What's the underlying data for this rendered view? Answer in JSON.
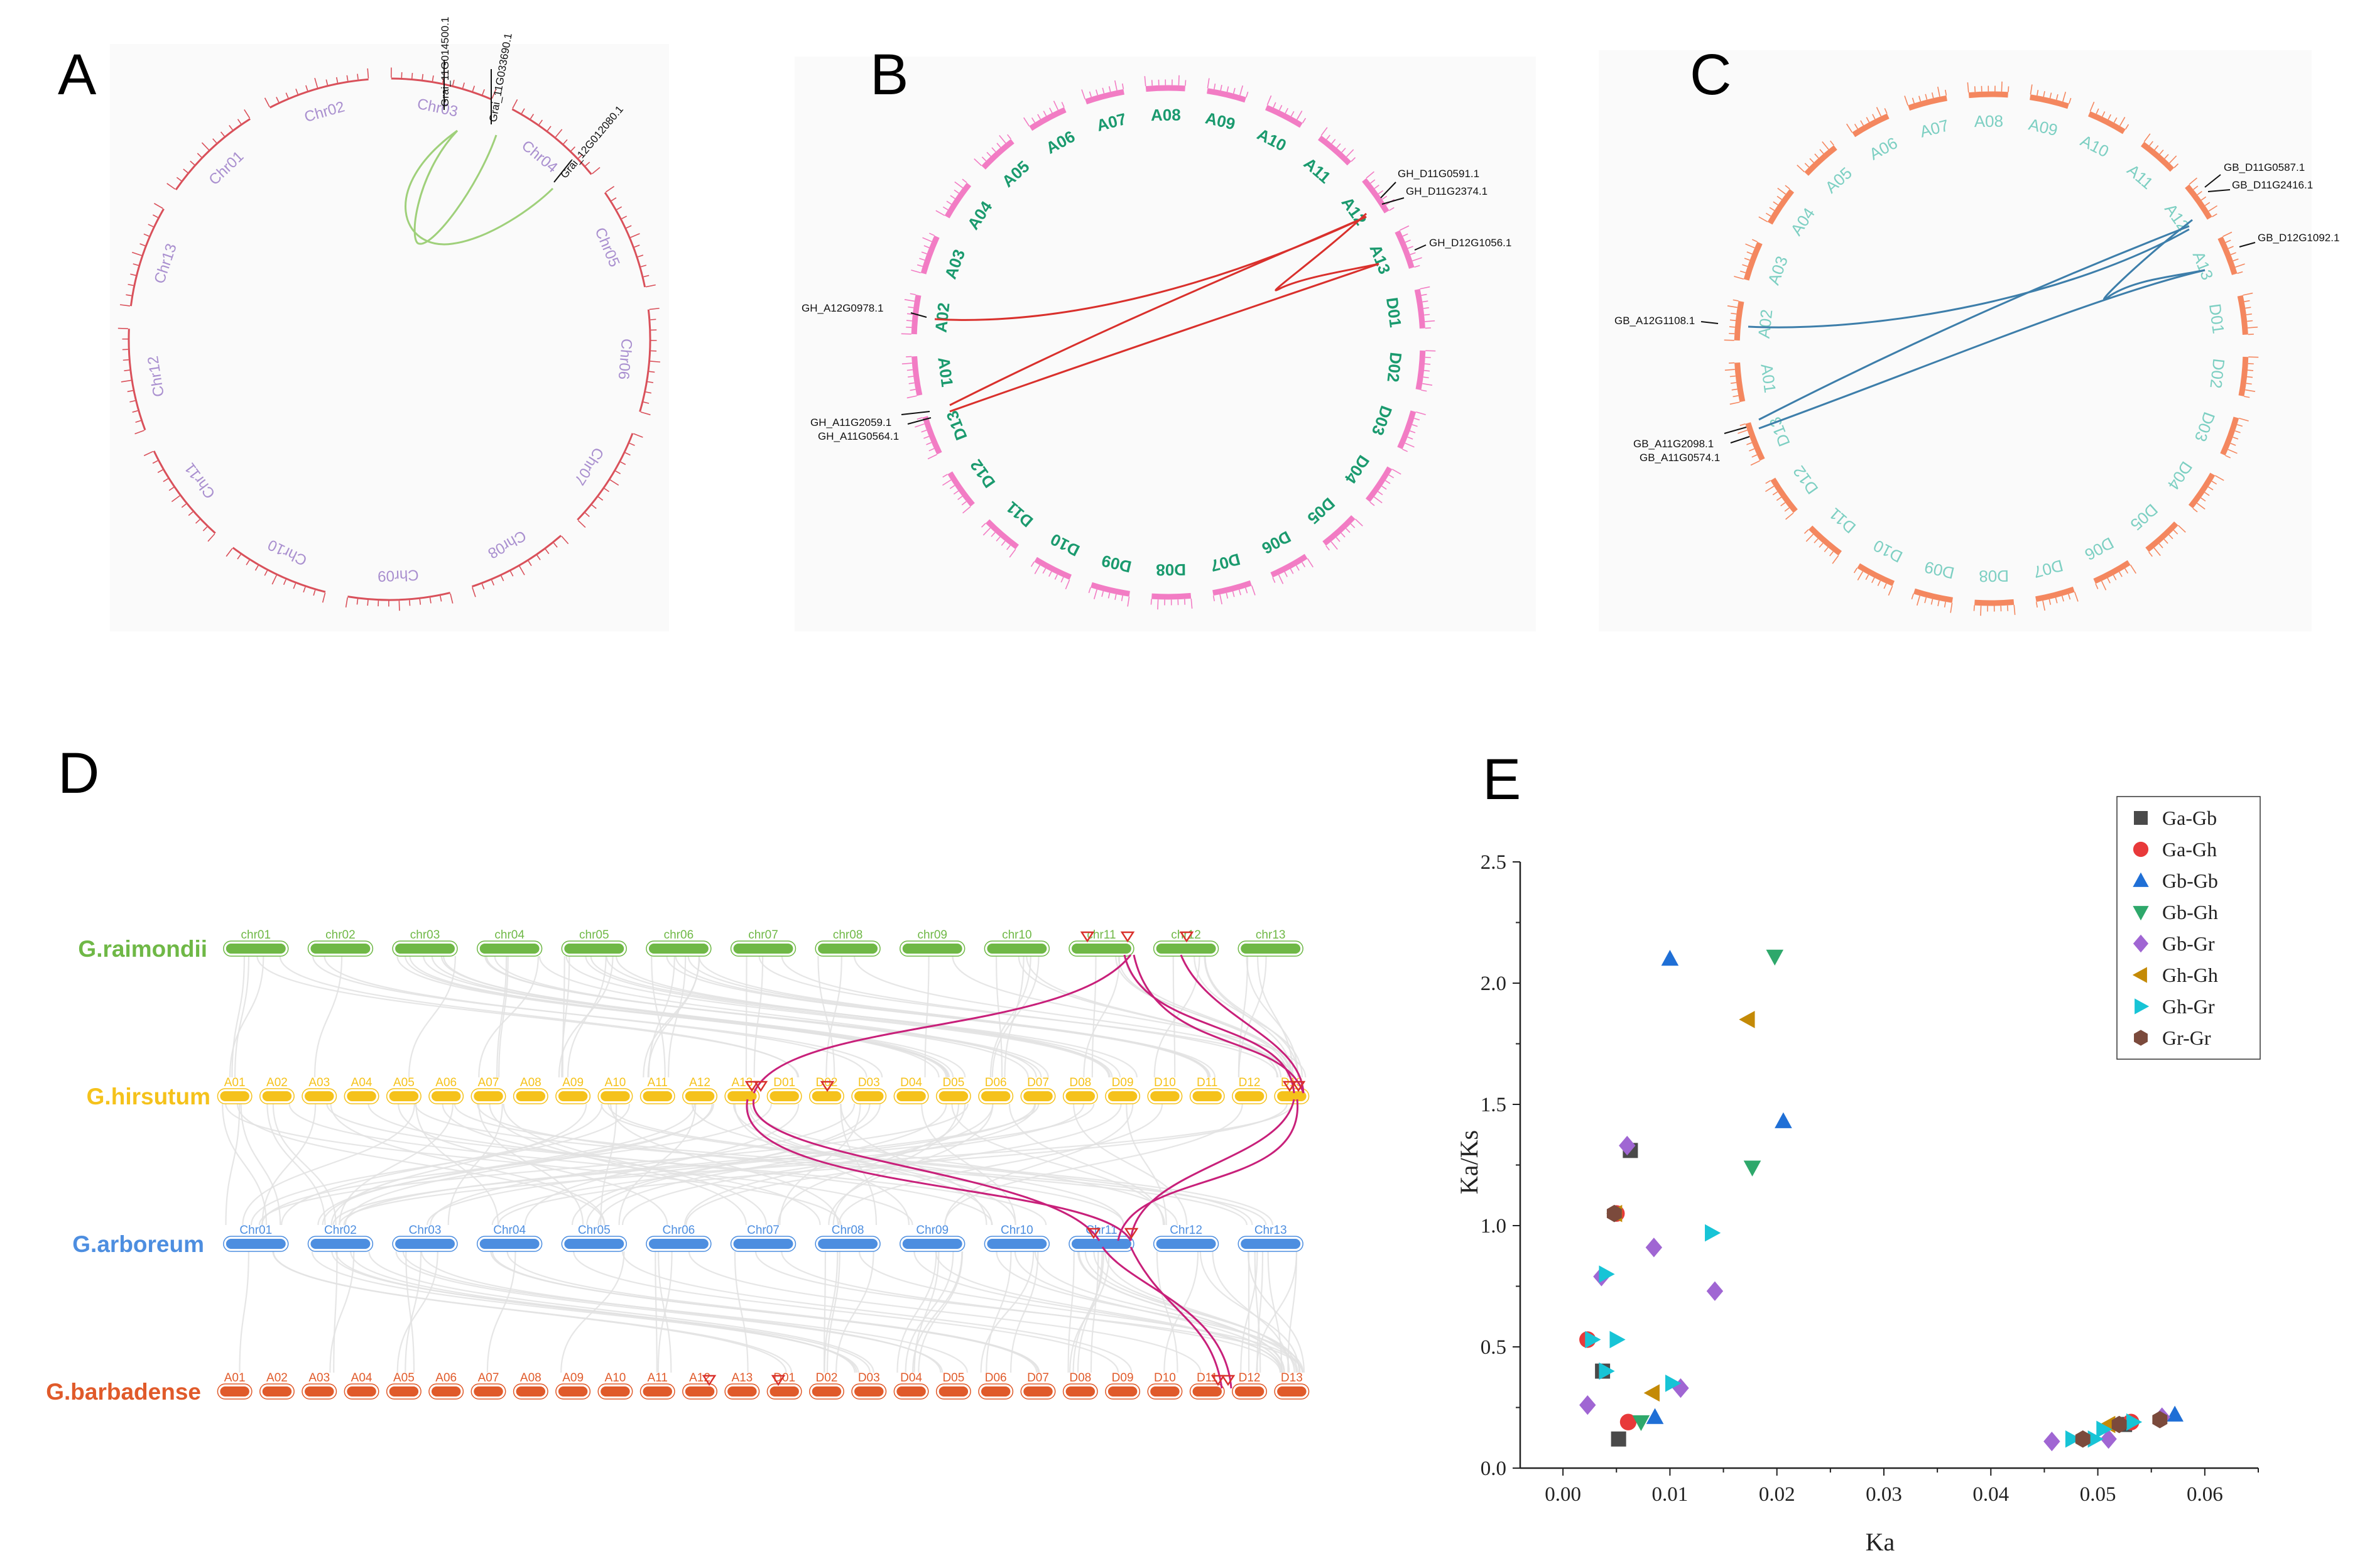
{
  "panels": {
    "a": "A",
    "b": "B",
    "c": "C",
    "d": "D",
    "e": "E"
  },
  "circos": [
    {
      "label": "A",
      "chromosomes": [
        "Chr01",
        "Chr02",
        "Chr03",
        "Chr04",
        "Chr05",
        "Chr06",
        "Chr07",
        "Chr08",
        "Chr09",
        "Chr10",
        "Chr11",
        "Chr12",
        "Chr13"
      ],
      "genes": [
        "Grai_11G014500.1",
        "Grai_11G033690.1",
        "Grai_12G012080.1"
      ],
      "color": "#d9505a",
      "label_color": "#a98fcf",
      "link_color": "#9fd07a"
    },
    {
      "label": "B",
      "chromosomes": [
        "A01",
        "A02",
        "A03",
        "A04",
        "A05",
        "A06",
        "A07",
        "A08",
        "A09",
        "A10",
        "A11",
        "A12",
        "A13",
        "D01",
        "D02",
        "D03",
        "D04",
        "D05",
        "D06",
        "D07",
        "D08",
        "D09",
        "D10",
        "D11",
        "D12",
        "D13"
      ],
      "genes": [
        "GH_D11G0591.1",
        "GH_D11G2374.1",
        "GH_D12G1056.1",
        "GH_A12G0978.1",
        "GH_A11G2059.1",
        "GH_A11G0564.1"
      ],
      "color": "#f27cc4",
      "label_color": "#1a9a6e",
      "link_color": "#d9302c"
    },
    {
      "label": "C",
      "chromosomes": [
        "A01",
        "A02",
        "A03",
        "A04",
        "A05",
        "A06",
        "A07",
        "A08",
        "A09",
        "A10",
        "A11",
        "A12",
        "A13",
        "D01",
        "D02",
        "D03",
        "D04",
        "D05",
        "D06",
        "D07",
        "D08",
        "D09",
        "D10",
        "D11",
        "D12",
        "D13"
      ],
      "genes": [
        "GB_D11G0587.1",
        "GB_D11G2416.1",
        "GB_D12G1092.1",
        "GB_A12G1108.1",
        "GB_A11G2098.1",
        "GB_A11G0574.1"
      ],
      "color": "#f4875f",
      "label_color": "#7ccfc2",
      "link_color": "#3d7eaa"
    }
  ],
  "synteny": {
    "rows": [
      {
        "species": "G.raimondii",
        "color": "#6fb846",
        "chroms": [
          "chr01",
          "chr02",
          "chr03",
          "chr04",
          "chr05",
          "chr06",
          "chr07",
          "chr08",
          "chr09",
          "chr10",
          "chr11",
          "chr12",
          "chr13"
        ]
      },
      {
        "species": "G.hirsutum",
        "color": "#f5c21b",
        "chroms": [
          "A01",
          "A02",
          "A03",
          "A04",
          "A05",
          "A06",
          "A07",
          "A08",
          "A09",
          "A10",
          "A11",
          "A12",
          "A13",
          "D01",
          "D02",
          "D03",
          "D04",
          "D05",
          "D06",
          "D07",
          "D08",
          "D09",
          "D10",
          "D11",
          "D12",
          "D13"
        ]
      },
      {
        "species": "G.arboreum",
        "color": "#4d8ee0",
        "chroms": [
          "Chr01",
          "Chr02",
          "Chr03",
          "Chr04",
          "Chr05",
          "Chr06",
          "Chr07",
          "Chr08",
          "Chr09",
          "Chr10",
          "Chr11",
          "Chr12",
          "Chr13"
        ]
      },
      {
        "species": "G.barbadense",
        "color": "#e05a2a",
        "chroms": [
          "A01",
          "A02",
          "A03",
          "A04",
          "A05",
          "A06",
          "A07",
          "A08",
          "A09",
          "A10",
          "A11",
          "A12",
          "A13",
          "D01",
          "D02",
          "D03",
          "D04",
          "D05",
          "D06",
          "D07",
          "D08",
          "D09",
          "D10",
          "D11",
          "D12",
          "D13"
        ]
      }
    ]
  },
  "chart_data": {
    "type": "scatter",
    "title": "",
    "xlabel": "Ka",
    "ylabel": "Ka/Ks",
    "xlim": [
      -0.004,
      0.065
    ],
    "ylim": [
      0,
      2.5
    ],
    "xticks": [
      "0.00",
      "0.01",
      "0.02",
      "0.03",
      "0.04",
      "0.05",
      "0.06"
    ],
    "yticks": [
      "0.0",
      "0.5",
      "1.0",
      "1.5",
      "2.0",
      "2.5"
    ],
    "legend_position": "top-right",
    "series": [
      {
        "name": "Ga-Gb",
        "marker": "square",
        "color": "#4a4a4a",
        "points": [
          [
            0.0063,
            1.31
          ],
          [
            0.0052,
            0.12
          ],
          [
            0.0037,
            0.4
          ],
          [
            0.0525,
            0.18
          ]
        ]
      },
      {
        "name": "Ga-Gh",
        "marker": "circle",
        "color": "#e8393a",
        "points": [
          [
            0.0061,
            0.19
          ],
          [
            0.005,
            1.05
          ],
          [
            0.0023,
            0.53
          ],
          [
            0.0531,
            0.19
          ]
        ]
      },
      {
        "name": "Gb-Gb",
        "marker": "triangle-up",
        "color": "#1f6fd6",
        "points": [
          [
            0.01,
            2.1
          ],
          [
            0.0206,
            1.43
          ],
          [
            0.0086,
            0.21
          ],
          [
            0.0572,
            0.22
          ]
        ]
      },
      {
        "name": "Gb-Gh",
        "marker": "triangle-down",
        "color": "#2ea86b",
        "points": [
          [
            0.0198,
            2.11
          ],
          [
            0.0177,
            1.24
          ],
          [
            0.0073,
            0.19
          ]
        ]
      },
      {
        "name": "Gb-Gr",
        "marker": "diamond",
        "color": "#a066d3",
        "points": [
          [
            0.006,
            1.33
          ],
          [
            0.0085,
            0.91
          ],
          [
            0.0142,
            0.73
          ],
          [
            0.0036,
            0.79
          ],
          [
            0.0023,
            0.26
          ],
          [
            0.011,
            0.33
          ],
          [
            0.0457,
            0.11
          ],
          [
            0.051,
            0.12
          ],
          [
            0.056,
            0.21
          ]
        ]
      },
      {
        "name": "Gh-Gh",
        "marker": "triangle-left",
        "color": "#c48a06",
        "points": [
          [
            0.0173,
            1.85
          ],
          [
            0.0049,
            1.05
          ],
          [
            0.0084,
            0.31
          ],
          [
            0.051,
            0.18
          ]
        ]
      },
      {
        "name": "Gh-Gr",
        "marker": "triangle-right",
        "color": "#17c4d6",
        "points": [
          [
            0.0139,
            0.97
          ],
          [
            0.004,
            0.8
          ],
          [
            0.0027,
            0.53
          ],
          [
            0.005,
            0.53
          ],
          [
            0.004,
            0.4
          ],
          [
            0.0102,
            0.35
          ],
          [
            0.0476,
            0.12
          ],
          [
            0.0497,
            0.12
          ],
          [
            0.0505,
            0.16
          ],
          [
            0.0533,
            0.19
          ]
        ]
      },
      {
        "name": "Gr-Gr",
        "marker": "hexagon",
        "color": "#7b4a3c",
        "points": [
          [
            0.0048,
            1.05
          ],
          [
            0.0486,
            0.12
          ],
          [
            0.052,
            0.18
          ],
          [
            0.0558,
            0.2
          ]
        ]
      }
    ]
  }
}
